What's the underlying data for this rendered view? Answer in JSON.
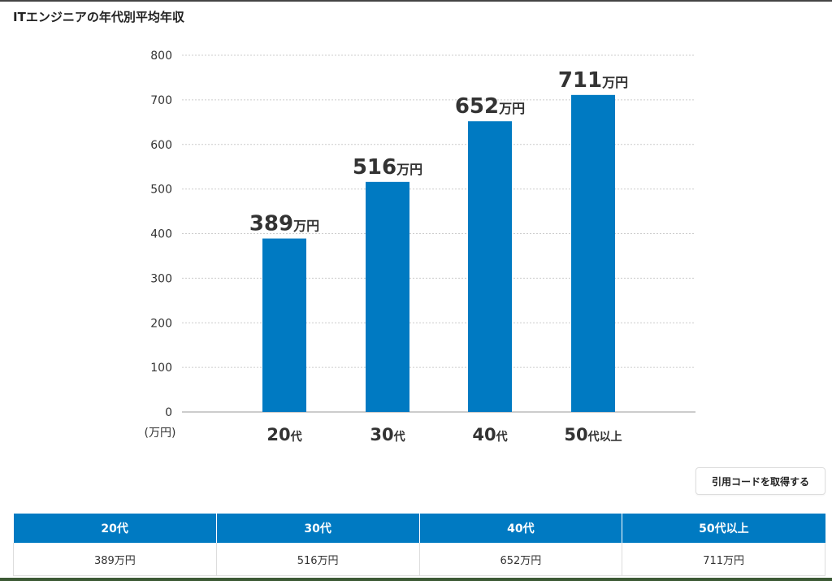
{
  "page": {
    "title": "ITエンジニアの年代別平均年収",
    "cite_button": "引用コードを取得する"
  },
  "colors": {
    "bar": "#007ac2",
    "header_bg": "#007ac2"
  },
  "chart_data": {
    "type": "bar",
    "categories": [
      {
        "num": "20",
        "suffix": "代"
      },
      {
        "num": "30",
        "suffix": "代"
      },
      {
        "num": "40",
        "suffix": "代"
      },
      {
        "num": "50",
        "suffix": "代以上"
      }
    ],
    "values": [
      389,
      516,
      652,
      711
    ],
    "value_suffix": "万円",
    "ylim": [
      0,
      800
    ],
    "yticks": [
      0,
      100,
      200,
      300,
      400,
      500,
      600,
      700,
      800
    ],
    "yunit": "(万円)",
    "grid": true
  },
  "table": {
    "headers": [
      "20代",
      "30代",
      "40代",
      "50代以上"
    ],
    "values": [
      "389万円",
      "516万円",
      "652万円",
      "711万円"
    ]
  }
}
